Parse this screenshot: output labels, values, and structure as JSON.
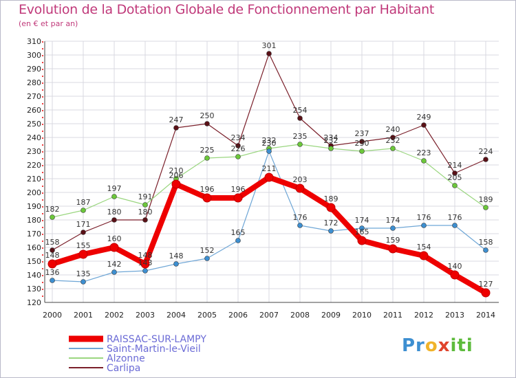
{
  "chart_data": {
    "type": "line",
    "title": "Evolution de la Dotation Globale de Fonctionnement par Habitant",
    "subtitle": "(en € et par an)",
    "x": [
      "2000",
      "2001",
      "2002",
      "2003",
      "2004",
      "2005",
      "2006",
      "2007",
      "2008",
      "2009",
      "2010",
      "2011",
      "2012",
      "2013",
      "2014"
    ],
    "ylim": [
      120,
      310
    ],
    "yticks": [
      120,
      130,
      140,
      150,
      160,
      170,
      180,
      190,
      200,
      210,
      220,
      230,
      240,
      250,
      260,
      270,
      280,
      290,
      300,
      310
    ],
    "grid": true,
    "series": [
      {
        "name": "Carlipa",
        "color": "#7a1f2a",
        "marker": "#5a1016",
        "values": [
          158,
          171,
          180,
          180,
          247,
          250,
          234,
          301,
          254,
          234,
          237,
          240,
          249,
          214,
          224
        ]
      },
      {
        "name": "Alzonne",
        "color": "#9ad67f",
        "marker": "#6cc83a",
        "values": [
          182,
          187,
          197,
          191,
          210,
          225,
          226,
          232,
          235,
          232,
          230,
          232,
          223,
          205,
          189
        ]
      },
      {
        "name": "Saint-Martin-le-Vieil",
        "color": "#6ea6d6",
        "marker": "#3d8fd1",
        "values": [
          136,
          135,
          142,
          143,
          148,
          152,
          165,
          230,
          176,
          172,
          174,
          174,
          176,
          176,
          158
        ]
      },
      {
        "name": "RAISSAC-SUR-LAMPY",
        "color": "#ee0000",
        "marker": "#ee0000",
        "values": [
          148,
          155,
          160,
          148,
          206,
          196,
          196,
          211,
          203,
          189,
          165,
          159,
          154,
          140,
          127
        ]
      }
    ],
    "value_labels": {
      "Carlipa": [
        "158",
        "171",
        "180",
        "180",
        "247",
        "250",
        "234",
        "301",
        "254",
        "234",
        "237",
        "240",
        "249",
        "214",
        "224"
      ],
      "Alzonne": [
        "182",
        "187",
        "197",
        "191",
        "210",
        "225",
        "226",
        "232",
        "235",
        "232",
        "230",
        "232",
        "223",
        "205",
        "189"
      ],
      "Saint-Martin-le-Vieil": [
        "136",
        "135",
        "142",
        "143",
        "148",
        "152",
        "165",
        "230",
        "176",
        "172",
        "174",
        "174",
        "176",
        "176",
        "158"
      ],
      "RAISSAC-SUR-LAMPY": [
        "148",
        "155",
        "160",
        "148",
        "206",
        "196",
        "196",
        "211",
        "203",
        "189",
        "165",
        "159",
        "154",
        "140",
        "127"
      ]
    },
    "legend": [
      "RAISSAC-SUR-LAMPY",
      "Saint-Martin-le-Vieil",
      "Alzonne",
      "Carlipa"
    ]
  },
  "logo": {
    "p1": "Pr",
    "p2": "o",
    "p3": "x",
    "p4": "iti"
  }
}
